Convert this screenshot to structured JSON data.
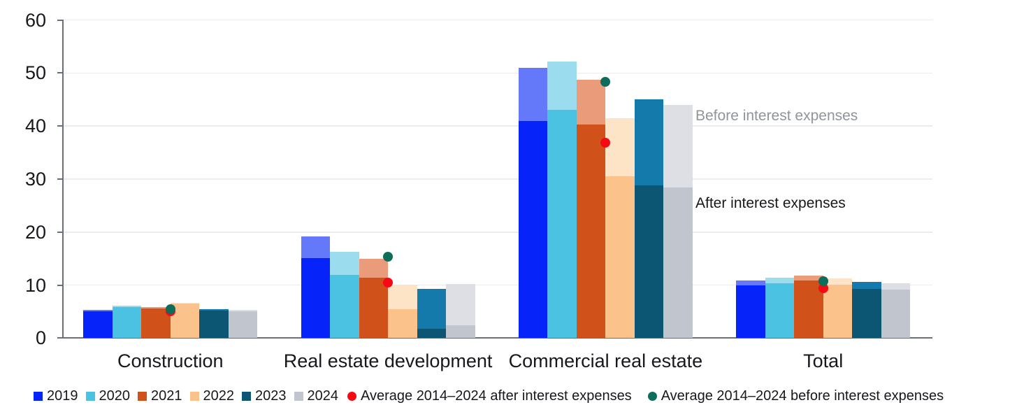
{
  "chart_data": {
    "type": "bar",
    "title": "",
    "categories": [
      "Construction",
      "Real estate development",
      "Commercial real estate",
      "Total"
    ],
    "years": [
      "2019",
      "2020",
      "2021",
      "2022",
      "2023",
      "2024"
    ],
    "series": [
      {
        "name": "2019",
        "color_after": "#0623fa",
        "color_before": "#6379fa",
        "after": [
          5.1,
          15.1,
          41.0,
          10.0
        ],
        "before": [
          5.3,
          19.2,
          51.0,
          10.8
        ]
      },
      {
        "name": "2020",
        "color_after": "#4cc2e3",
        "color_before": "#9cdcef",
        "after": [
          5.9,
          11.9,
          43.1,
          10.4
        ],
        "before": [
          6.1,
          16.3,
          52.2,
          11.4
        ]
      },
      {
        "name": "2021",
        "color_after": "#d05119",
        "color_before": "#ea9c7a",
        "after": [
          5.6,
          11.4,
          40.3,
          10.8
        ],
        "before": [
          5.9,
          14.9,
          48.7,
          11.8
        ]
      },
      {
        "name": "2022",
        "color_after": "#fbc28b",
        "color_before": "#fde4c7",
        "after": [
          6.5,
          5.4,
          30.5,
          10.1
        ],
        "before": [
          6.7,
          10.1,
          41.5,
          11.3
        ]
      },
      {
        "name": "2023",
        "color_after": "#0d5673",
        "color_before": "#147aab",
        "after": [
          5.2,
          1.8,
          28.8,
          9.3
        ],
        "before": [
          5.4,
          9.3,
          45.0,
          10.6
        ]
      },
      {
        "name": "2024",
        "color_after": "#c1c5cd",
        "color_before": "#dddfe4",
        "after": [
          5.1,
          2.4,
          28.4,
          9.1
        ],
        "before": [
          5.3,
          10.2,
          44.0,
          10.4
        ]
      }
    ],
    "averages": [
      {
        "key": "after",
        "label": "Average 2014–2024 after interest expenses",
        "color": "#f70813",
        "values": [
          5.1,
          10.5,
          36.8,
          9.4
        ]
      },
      {
        "key": "before",
        "label": "Average 2014–2024 before interest expenses",
        "color": "#0d6c5a",
        "values": [
          5.5,
          15.4,
          48.3,
          10.7
        ]
      }
    ],
    "annotations": [
      {
        "text": "Before interest expenses",
        "value": 41.9,
        "color": "#8f949d"
      },
      {
        "text": "After interest expenses",
        "value": 25.4,
        "color": "#17181c"
      }
    ],
    "ylim": [
      0,
      60
    ],
    "yticks": [
      0,
      10,
      20,
      30,
      40,
      50,
      60
    ],
    "grid": true,
    "legend_position": "bottom",
    "colors": {
      "grid": "#ececee",
      "axis": "#6b6f7b",
      "text": "#17181c"
    }
  }
}
